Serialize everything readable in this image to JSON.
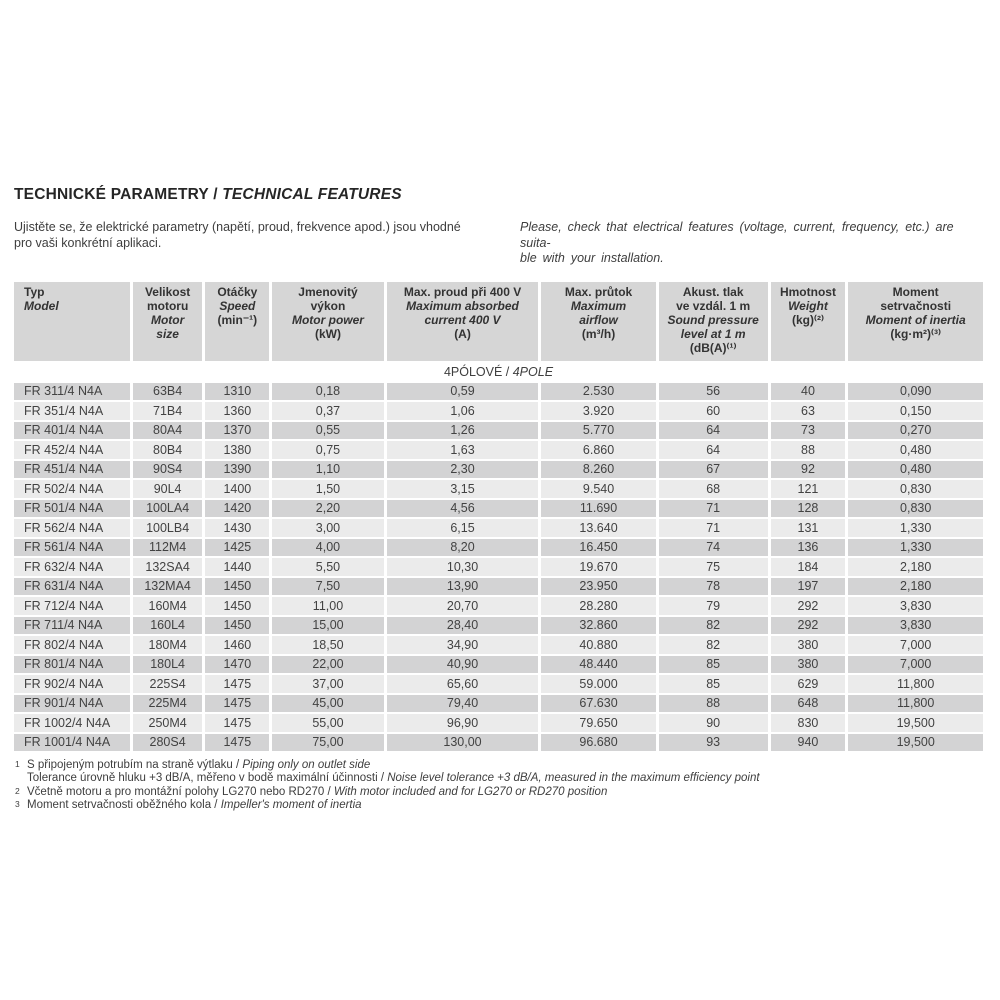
{
  "page": {
    "title_cz": "TECHNICKÉ PARAMETRY / ",
    "title_en": "TECHNICAL FEATURES",
    "intro_cz": "Ujistěte se, že elektrické parametry (napětí, proud, frekvence apod.) jsou vhodné\npro vaši konkrétní aplikaci.",
    "intro_en": "Please, check that electrical features (voltage, current, frequency, etc.) are suita-\nble with your installation."
  },
  "colors": {
    "header_bg": "#d6d6d6",
    "row_dark": "#d3d3d4",
    "row_light": "#ebebeb",
    "page_bg": "#ffffff",
    "text": "#3e3e3e"
  },
  "table": {
    "section_label_cz": "4PÓLOVÉ / ",
    "section_label_en": "4POLE",
    "columns": [
      {
        "key": "typ",
        "align": "left",
        "lines": [
          {
            "t": "Typ",
            "i": 0
          },
          {
            "t": "Model",
            "i": 1
          }
        ]
      },
      {
        "key": "motor-size",
        "lines": [
          {
            "t": "Velikost",
            "i": 0
          },
          {
            "t": "motoru",
            "i": 0
          },
          {
            "t": "Motor",
            "i": 1
          },
          {
            "t": "size",
            "i": 1
          }
        ]
      },
      {
        "key": "speed",
        "lines": [
          {
            "t": "Otáčky",
            "i": 0
          },
          {
            "t": "Speed",
            "i": 1
          },
          {
            "t": "(min⁻¹)",
            "i": 0
          }
        ]
      },
      {
        "key": "motor-power",
        "lines": [
          {
            "t": "Jmenovitý",
            "i": 0
          },
          {
            "t": "výkon",
            "i": 0
          },
          {
            "t": "Motor power",
            "i": 1
          },
          {
            "t": "(kW)",
            "i": 0
          }
        ]
      },
      {
        "key": "max-current",
        "lines": [
          {
            "t": "Max. proud při 400 V",
            "i": 0
          },
          {
            "t": "Maximum absorbed",
            "i": 1
          },
          {
            "t": "current 400 V",
            "i": 1
          },
          {
            "t": "(A)",
            "i": 0
          }
        ]
      },
      {
        "key": "max-airflow",
        "lines": [
          {
            "t": "Max. průtok",
            "i": 0
          },
          {
            "t": "Maximum",
            "i": 1
          },
          {
            "t": "airflow",
            "i": 1
          },
          {
            "t": "(m³/h)",
            "i": 0
          }
        ]
      },
      {
        "key": "sound-pressure",
        "lines": [
          {
            "t": "Akust. tlak",
            "i": 0
          },
          {
            "t": "ve vzdál. 1 m",
            "i": 0
          },
          {
            "t": "Sound pressure",
            "i": 1
          },
          {
            "t": "level at 1 m",
            "i": 1
          },
          {
            "t": "(dB(A)⁽¹⁾",
            "i": 0
          }
        ]
      },
      {
        "key": "weight",
        "lines": [
          {
            "t": "Hmotnost",
            "i": 0
          },
          {
            "t": "Weight",
            "i": 1
          },
          {
            "t": "(kg)⁽²⁾",
            "i": 0
          }
        ]
      },
      {
        "key": "moment-of-inertia",
        "lines": [
          {
            "t": "Moment",
            "i": 0
          },
          {
            "t": "setrvačnosti",
            "i": 0
          },
          {
            "t": "Moment of inertia",
            "i": 1
          },
          {
            "t": "(kg·m²)⁽³⁾",
            "i": 0
          }
        ]
      }
    ],
    "rows": [
      [
        "FR 311/4 N4A",
        "63B4",
        "1310",
        "0,18",
        "0,59",
        "2.530",
        "56",
        "40",
        "0,090"
      ],
      [
        "FR 351/4 N4A",
        "71B4",
        "1360",
        "0,37",
        "1,06",
        "3.920",
        "60",
        "63",
        "0,150"
      ],
      [
        "FR 401/4 N4A",
        "80A4",
        "1370",
        "0,55",
        "1,26",
        "5.770",
        "64",
        "73",
        "0,270"
      ],
      [
        "FR 452/4 N4A",
        "80B4",
        "1380",
        "0,75",
        "1,63",
        "6.860",
        "64",
        "88",
        "0,480"
      ],
      [
        "FR 451/4 N4A",
        "90S4",
        "1390",
        "1,10",
        "2,30",
        "8.260",
        "67",
        "92",
        "0,480"
      ],
      [
        "FR 502/4 N4A",
        "90L4",
        "1400",
        "1,50",
        "3,15",
        "9.540",
        "68",
        "121",
        "0,830"
      ],
      [
        "FR 501/4 N4A",
        "100LA4",
        "1420",
        "2,20",
        "4,56",
        "11.690",
        "71",
        "128",
        "0,830"
      ],
      [
        "FR 562/4 N4A",
        "100LB4",
        "1430",
        "3,00",
        "6,15",
        "13.640",
        "71",
        "131",
        "1,330"
      ],
      [
        "FR 561/4 N4A",
        "112M4",
        "1425",
        "4,00",
        "8,20",
        "16.450",
        "74",
        "136",
        "1,330"
      ],
      [
        "FR 632/4 N4A",
        "132SA4",
        "1440",
        "5,50",
        "10,30",
        "19.670",
        "75",
        "184",
        "2,180"
      ],
      [
        "FR 631/4 N4A",
        "132MA4",
        "1450",
        "7,50",
        "13,90",
        "23.950",
        "78",
        "197",
        "2,180"
      ],
      [
        "FR 712/4 N4A",
        "160M4",
        "1450",
        "11,00",
        "20,70",
        "28.280",
        "79",
        "292",
        "3,830"
      ],
      [
        "FR 711/4 N4A",
        "160L4",
        "1450",
        "15,00",
        "28,40",
        "32.860",
        "82",
        "292",
        "3,830"
      ],
      [
        "FR 802/4 N4A",
        "180M4",
        "1460",
        "18,50",
        "34,90",
        "40.880",
        "82",
        "380",
        "7,000"
      ],
      [
        "FR 801/4 N4A",
        "180L4",
        "1470",
        "22,00",
        "40,90",
        "48.440",
        "85",
        "380",
        "7,000"
      ],
      [
        "FR 902/4 N4A",
        "225S4",
        "1475",
        "37,00",
        "65,60",
        "59.000",
        "85",
        "629",
        "11,800"
      ],
      [
        "FR 901/4 N4A",
        "225M4",
        "1475",
        "45,00",
        "79,40",
        "67.630",
        "88",
        "648",
        "11,800"
      ],
      [
        "FR 1002/4 N4A",
        "250M4",
        "1475",
        "55,00",
        "96,90",
        "79.650",
        "90",
        "830",
        "19,500"
      ],
      [
        "FR 1001/4 N4A",
        "280S4",
        "1475",
        "75,00",
        "130,00",
        "96.680",
        "93",
        "940",
        "19,500"
      ]
    ]
  },
  "footnotes": [
    {
      "marker": "1",
      "lines": [
        {
          "cz": "S připojeným potrubím na straně výtlaku / ",
          "en": "Piping only on outlet side"
        },
        {
          "cz": "Tolerance úrovně hluku +3 dB/A, měřeno v bodě maximální účinnosti / ",
          "en": "Noise level tolerance +3 dB/A, measured in the maximum efficiency point"
        }
      ]
    },
    {
      "marker": "2",
      "lines": [
        {
          "cz": "Včetně motoru a pro montážní polohy LG270 nebo RD270 / ",
          "en": "With motor included and for LG270 or RD270 position"
        }
      ]
    },
    {
      "marker": "3",
      "lines": [
        {
          "cz": "Moment setrvačnosti oběžného kola / ",
          "en": "Impeller's moment of inertia"
        }
      ]
    }
  ]
}
